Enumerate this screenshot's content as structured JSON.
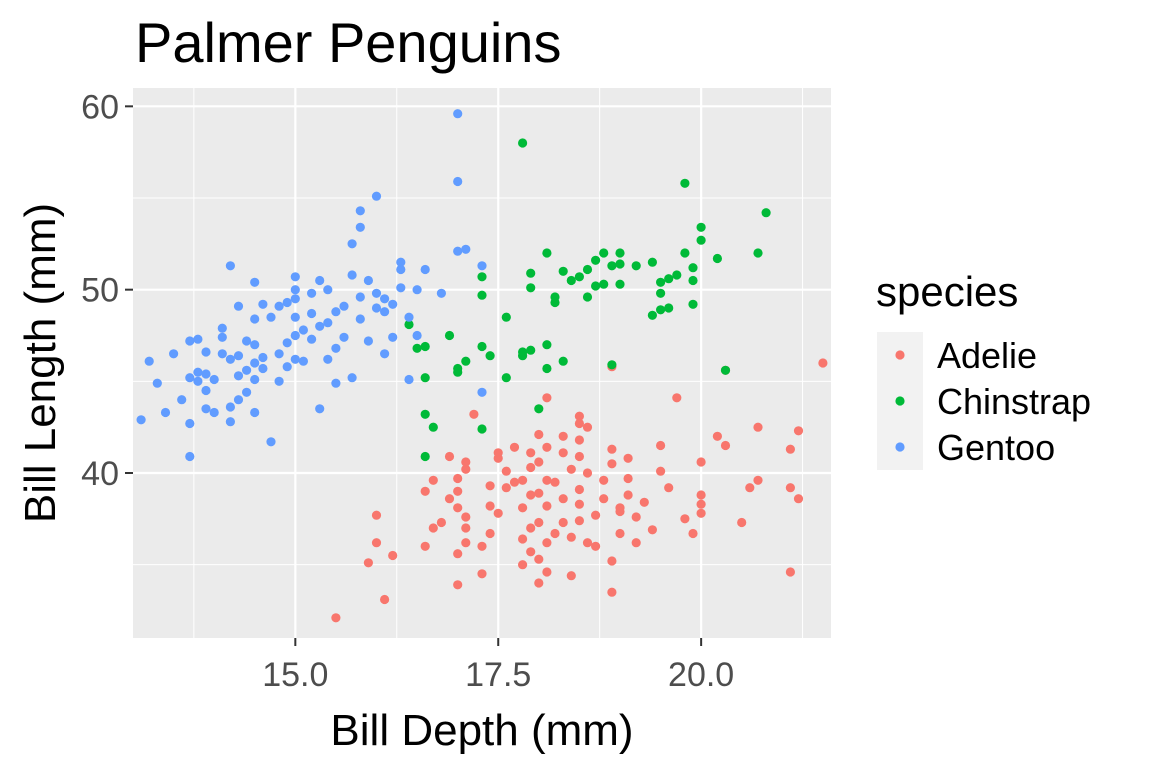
{
  "chart_data": {
    "type": "scatter",
    "title": "Palmer Penguins",
    "xlabel": "Bill Depth (mm)",
    "ylabel": "Bill Length (mm)",
    "xlim": [
      13.0,
      21.6
    ],
    "ylim": [
      31.0,
      61.0
    ],
    "x_ticks": [
      15.0,
      17.5,
      20.0
    ],
    "x_tick_labels": [
      "15.0",
      "17.5",
      "20.0"
    ],
    "y_ticks": [
      40,
      50,
      60
    ],
    "y_tick_labels": [
      "40",
      "50",
      "60"
    ],
    "grid": true,
    "legend": {
      "title": "species",
      "position": "right"
    },
    "series": [
      {
        "name": "Adelie",
        "color": "#F8766D",
        "points": [
          [
            15.5,
            32.1
          ],
          [
            16.1,
            33.1
          ],
          [
            15.9,
            35.1
          ],
          [
            16.2,
            35.5
          ],
          [
            16.0,
            36.2
          ],
          [
            16.0,
            37.7
          ],
          [
            16.6,
            36.0
          ],
          [
            16.8,
            37.3
          ],
          [
            16.9,
            38.6
          ],
          [
            16.6,
            39.0
          ],
          [
            16.7,
            39.6
          ],
          [
            16.9,
            40.9
          ],
          [
            17.0,
            35.6
          ],
          [
            17.1,
            36.2
          ],
          [
            17.1,
            37.0
          ],
          [
            17.1,
            37.6
          ],
          [
            17.0,
            38.1
          ],
          [
            17.0,
            39.0
          ],
          [
            17.0,
            39.7
          ],
          [
            17.1,
            40.2
          ],
          [
            17.1,
            40.6
          ],
          [
            17.0,
            33.9
          ],
          [
            17.3,
            34.5
          ],
          [
            17.3,
            36.0
          ],
          [
            17.4,
            36.7
          ],
          [
            17.5,
            37.8
          ],
          [
            17.4,
            38.2
          ],
          [
            17.6,
            39.2
          ],
          [
            17.7,
            39.5
          ],
          [
            17.5,
            40.8
          ],
          [
            17.5,
            41.1
          ],
          [
            17.7,
            41.4
          ],
          [
            17.8,
            35.0
          ],
          [
            17.9,
            35.7
          ],
          [
            17.8,
            36.4
          ],
          [
            17.9,
            37.0
          ],
          [
            17.8,
            38.1
          ],
          [
            17.9,
            38.8
          ],
          [
            17.8,
            39.6
          ],
          [
            17.9,
            40.3
          ],
          [
            17.9,
            41.1
          ],
          [
            18.0,
            34.0
          ],
          [
            18.1,
            34.6
          ],
          [
            18.0,
            35.3
          ],
          [
            18.1,
            36.2
          ],
          [
            18.0,
            37.3
          ],
          [
            18.1,
            38.2
          ],
          [
            18.0,
            38.9
          ],
          [
            18.1,
            39.6
          ],
          [
            18.0,
            40.6
          ],
          [
            18.1,
            41.4
          ],
          [
            18.0,
            42.1
          ],
          [
            18.2,
            36.7
          ],
          [
            18.3,
            38.6
          ],
          [
            18.2,
            39.5
          ],
          [
            18.4,
            40.2
          ],
          [
            18.3,
            41.1
          ],
          [
            18.3,
            42.0
          ],
          [
            18.4,
            34.4
          ],
          [
            18.4,
            36.5
          ],
          [
            18.5,
            37.4
          ],
          [
            18.5,
            38.3
          ],
          [
            18.5,
            39.1
          ],
          [
            18.6,
            40.0
          ],
          [
            18.5,
            40.9
          ],
          [
            18.5,
            41.8
          ],
          [
            18.5,
            43.1
          ],
          [
            18.6,
            42.5
          ],
          [
            18.7,
            36.0
          ],
          [
            18.7,
            37.7
          ],
          [
            18.8,
            38.6
          ],
          [
            18.8,
            39.6
          ],
          [
            18.9,
            40.5
          ],
          [
            18.9,
            41.3
          ],
          [
            18.9,
            45.8
          ],
          [
            18.9,
            33.5
          ],
          [
            18.9,
            35.2
          ],
          [
            19.0,
            36.7
          ],
          [
            19.0,
            37.9
          ],
          [
            19.1,
            38.8
          ],
          [
            19.1,
            39.7
          ],
          [
            19.1,
            40.8
          ],
          [
            19.2,
            36.2
          ],
          [
            19.2,
            37.6
          ],
          [
            19.3,
            38.4
          ],
          [
            19.4,
            36.9
          ],
          [
            19.5,
            41.5
          ],
          [
            19.5,
            40.1
          ],
          [
            19.6,
            39.2
          ],
          [
            19.7,
            44.1
          ],
          [
            19.8,
            37.5
          ],
          [
            19.9,
            36.7
          ],
          [
            20.0,
            38.3
          ],
          [
            20.0,
            38.8
          ],
          [
            20.0,
            37.8
          ],
          [
            20.0,
            40.6
          ],
          [
            20.2,
            42.0
          ],
          [
            20.3,
            41.5
          ],
          [
            20.3,
            45.6
          ],
          [
            20.5,
            37.3
          ],
          [
            20.6,
            39.2
          ],
          [
            20.7,
            39.6
          ],
          [
            20.7,
            42.5
          ],
          [
            21.1,
            34.6
          ],
          [
            21.1,
            39.2
          ],
          [
            21.1,
            41.3
          ],
          [
            21.2,
            38.6
          ],
          [
            21.2,
            42.3
          ],
          [
            21.5,
            46.0
          ],
          [
            17.2,
            43.2
          ],
          [
            18.1,
            44.1
          ],
          [
            18.5,
            42.7
          ],
          [
            17.6,
            40.1
          ],
          [
            16.7,
            37.0
          ],
          [
            18.6,
            36.2
          ],
          [
            17.4,
            39.3
          ],
          [
            19.0,
            38.1
          ],
          [
            18.3,
            37.3
          ]
        ]
      },
      {
        "name": "Chinstrap",
        "color": "#00BA38",
        "points": [
          [
            16.4,
            48.1
          ],
          [
            16.5,
            46.8
          ],
          [
            16.6,
            46.9
          ],
          [
            16.6,
            45.2
          ],
          [
            16.6,
            43.2
          ],
          [
            16.6,
            40.9
          ],
          [
            16.7,
            42.5
          ],
          [
            16.9,
            47.5
          ],
          [
            17.0,
            45.5
          ],
          [
            17.0,
            45.7
          ],
          [
            17.1,
            46.1
          ],
          [
            17.3,
            42.4
          ],
          [
            17.3,
            46.9
          ],
          [
            17.3,
            49.7
          ],
          [
            17.3,
            50.7
          ],
          [
            17.4,
            46.4
          ],
          [
            17.6,
            48.5
          ],
          [
            17.6,
            45.2
          ],
          [
            17.8,
            46.4
          ],
          [
            17.8,
            46.6
          ],
          [
            17.9,
            46.7
          ],
          [
            17.8,
            58.0
          ],
          [
            17.9,
            50.1
          ],
          [
            17.9,
            50.9
          ],
          [
            18.0,
            43.5
          ],
          [
            18.1,
            45.7
          ],
          [
            18.1,
            47.0
          ],
          [
            18.1,
            52.0
          ],
          [
            18.2,
            49.3
          ],
          [
            18.2,
            49.6
          ],
          [
            18.3,
            51.0
          ],
          [
            18.3,
            46.1
          ],
          [
            18.4,
            50.5
          ],
          [
            18.5,
            50.7
          ],
          [
            18.6,
            49.6
          ],
          [
            18.6,
            51.1
          ],
          [
            18.7,
            50.2
          ],
          [
            18.7,
            51.6
          ],
          [
            18.8,
            50.3
          ],
          [
            18.8,
            52.0
          ],
          [
            18.9,
            45.9
          ],
          [
            18.9,
            51.3
          ],
          [
            19.0,
            50.3
          ],
          [
            19.0,
            51.4
          ],
          [
            19.0,
            52.0
          ],
          [
            19.2,
            51.3
          ],
          [
            19.4,
            48.6
          ],
          [
            19.4,
            51.5
          ],
          [
            19.5,
            49.8
          ],
          [
            19.5,
            50.4
          ],
          [
            19.5,
            48.9
          ],
          [
            19.6,
            50.6
          ],
          [
            19.6,
            49.0
          ],
          [
            19.7,
            50.8
          ],
          [
            19.8,
            52.0
          ],
          [
            19.8,
            55.8
          ],
          [
            19.9,
            51.2
          ],
          [
            19.9,
            49.2
          ],
          [
            19.9,
            50.5
          ],
          [
            20.0,
            52.7
          ],
          [
            20.0,
            53.4
          ],
          [
            20.2,
            51.7
          ],
          [
            20.7,
            52.0
          ],
          [
            20.8,
            54.2
          ],
          [
            20.3,
            45.6
          ]
        ]
      },
      {
        "name": "Gentoo",
        "color": "#619CFF",
        "points": [
          [
            13.1,
            42.9
          ],
          [
            13.2,
            46.1
          ],
          [
            13.3,
            44.9
          ],
          [
            13.4,
            43.3
          ],
          [
            13.5,
            46.5
          ],
          [
            13.6,
            44.0
          ],
          [
            13.7,
            40.9
          ],
          [
            13.7,
            42.7
          ],
          [
            13.7,
            45.2
          ],
          [
            13.7,
            47.2
          ],
          [
            13.8,
            45.0
          ],
          [
            13.8,
            45.5
          ],
          [
            13.8,
            47.3
          ],
          [
            13.9,
            43.5
          ],
          [
            13.9,
            44.5
          ],
          [
            13.9,
            45.4
          ],
          [
            13.9,
            46.6
          ],
          [
            14.0,
            43.3
          ],
          [
            14.0,
            45.1
          ],
          [
            14.1,
            47.4
          ],
          [
            14.1,
            47.9
          ],
          [
            14.2,
            42.8
          ],
          [
            14.2,
            43.6
          ],
          [
            14.2,
            46.2
          ],
          [
            14.2,
            51.3
          ],
          [
            14.3,
            44.0
          ],
          [
            14.3,
            45.3
          ],
          [
            14.3,
            46.4
          ],
          [
            14.3,
            49.1
          ],
          [
            14.4,
            44.4
          ],
          [
            14.4,
            45.6
          ],
          [
            14.4,
            47.2
          ],
          [
            14.5,
            43.3
          ],
          [
            14.5,
            45.1
          ],
          [
            14.5,
            46.0
          ],
          [
            14.5,
            47.0
          ],
          [
            14.5,
            48.4
          ],
          [
            14.5,
            50.4
          ],
          [
            14.6,
            45.7
          ],
          [
            14.6,
            46.3
          ],
          [
            14.7,
            41.7
          ],
          [
            14.7,
            48.5
          ],
          [
            14.8,
            45.0
          ],
          [
            14.8,
            46.5
          ],
          [
            14.8,
            49.1
          ],
          [
            14.9,
            45.8
          ],
          [
            14.9,
            47.1
          ],
          [
            14.9,
            49.3
          ],
          [
            15.0,
            46.2
          ],
          [
            15.0,
            47.5
          ],
          [
            15.0,
            48.5
          ],
          [
            15.0,
            49.5
          ],
          [
            15.0,
            50.0
          ],
          [
            15.0,
            50.7
          ],
          [
            15.1,
            46.1
          ],
          [
            15.1,
            47.8
          ],
          [
            15.2,
            47.3
          ],
          [
            15.2,
            48.7
          ],
          [
            15.2,
            49.8
          ],
          [
            15.3,
            43.5
          ],
          [
            15.3,
            50.5
          ],
          [
            15.4,
            46.2
          ],
          [
            15.4,
            48.2
          ],
          [
            15.4,
            50.0
          ],
          [
            15.5,
            44.9
          ],
          [
            15.5,
            46.8
          ],
          [
            15.5,
            48.8
          ],
          [
            15.6,
            47.4
          ],
          [
            15.6,
            49.1
          ],
          [
            15.7,
            50.8
          ],
          [
            15.7,
            52.5
          ],
          [
            15.7,
            45.2
          ],
          [
            15.8,
            48.4
          ],
          [
            15.8,
            49.6
          ],
          [
            15.8,
            53.4
          ],
          [
            15.8,
            54.3
          ],
          [
            15.9,
            47.2
          ],
          [
            15.9,
            50.5
          ],
          [
            16.0,
            49.0
          ],
          [
            16.0,
            49.8
          ],
          [
            16.0,
            55.1
          ],
          [
            16.1,
            46.5
          ],
          [
            16.1,
            48.8
          ],
          [
            16.1,
            49.5
          ],
          [
            16.2,
            47.4
          ],
          [
            16.2,
            49.2
          ],
          [
            16.3,
            50.1
          ],
          [
            16.3,
            51.1
          ],
          [
            16.3,
            51.5
          ],
          [
            16.4,
            45.1
          ],
          [
            16.4,
            48.5
          ],
          [
            16.5,
            47.5
          ],
          [
            16.5,
            50.0
          ],
          [
            16.6,
            51.1
          ],
          [
            16.8,
            49.8
          ],
          [
            17.0,
            52.1
          ],
          [
            17.0,
            55.9
          ],
          [
            17.0,
            59.6
          ],
          [
            17.1,
            52.2
          ],
          [
            17.3,
            44.4
          ],
          [
            17.3,
            51.3
          ],
          [
            14.6,
            49.2
          ],
          [
            15.3,
            48.0
          ],
          [
            14.1,
            46.5
          ]
        ]
      }
    ]
  }
}
